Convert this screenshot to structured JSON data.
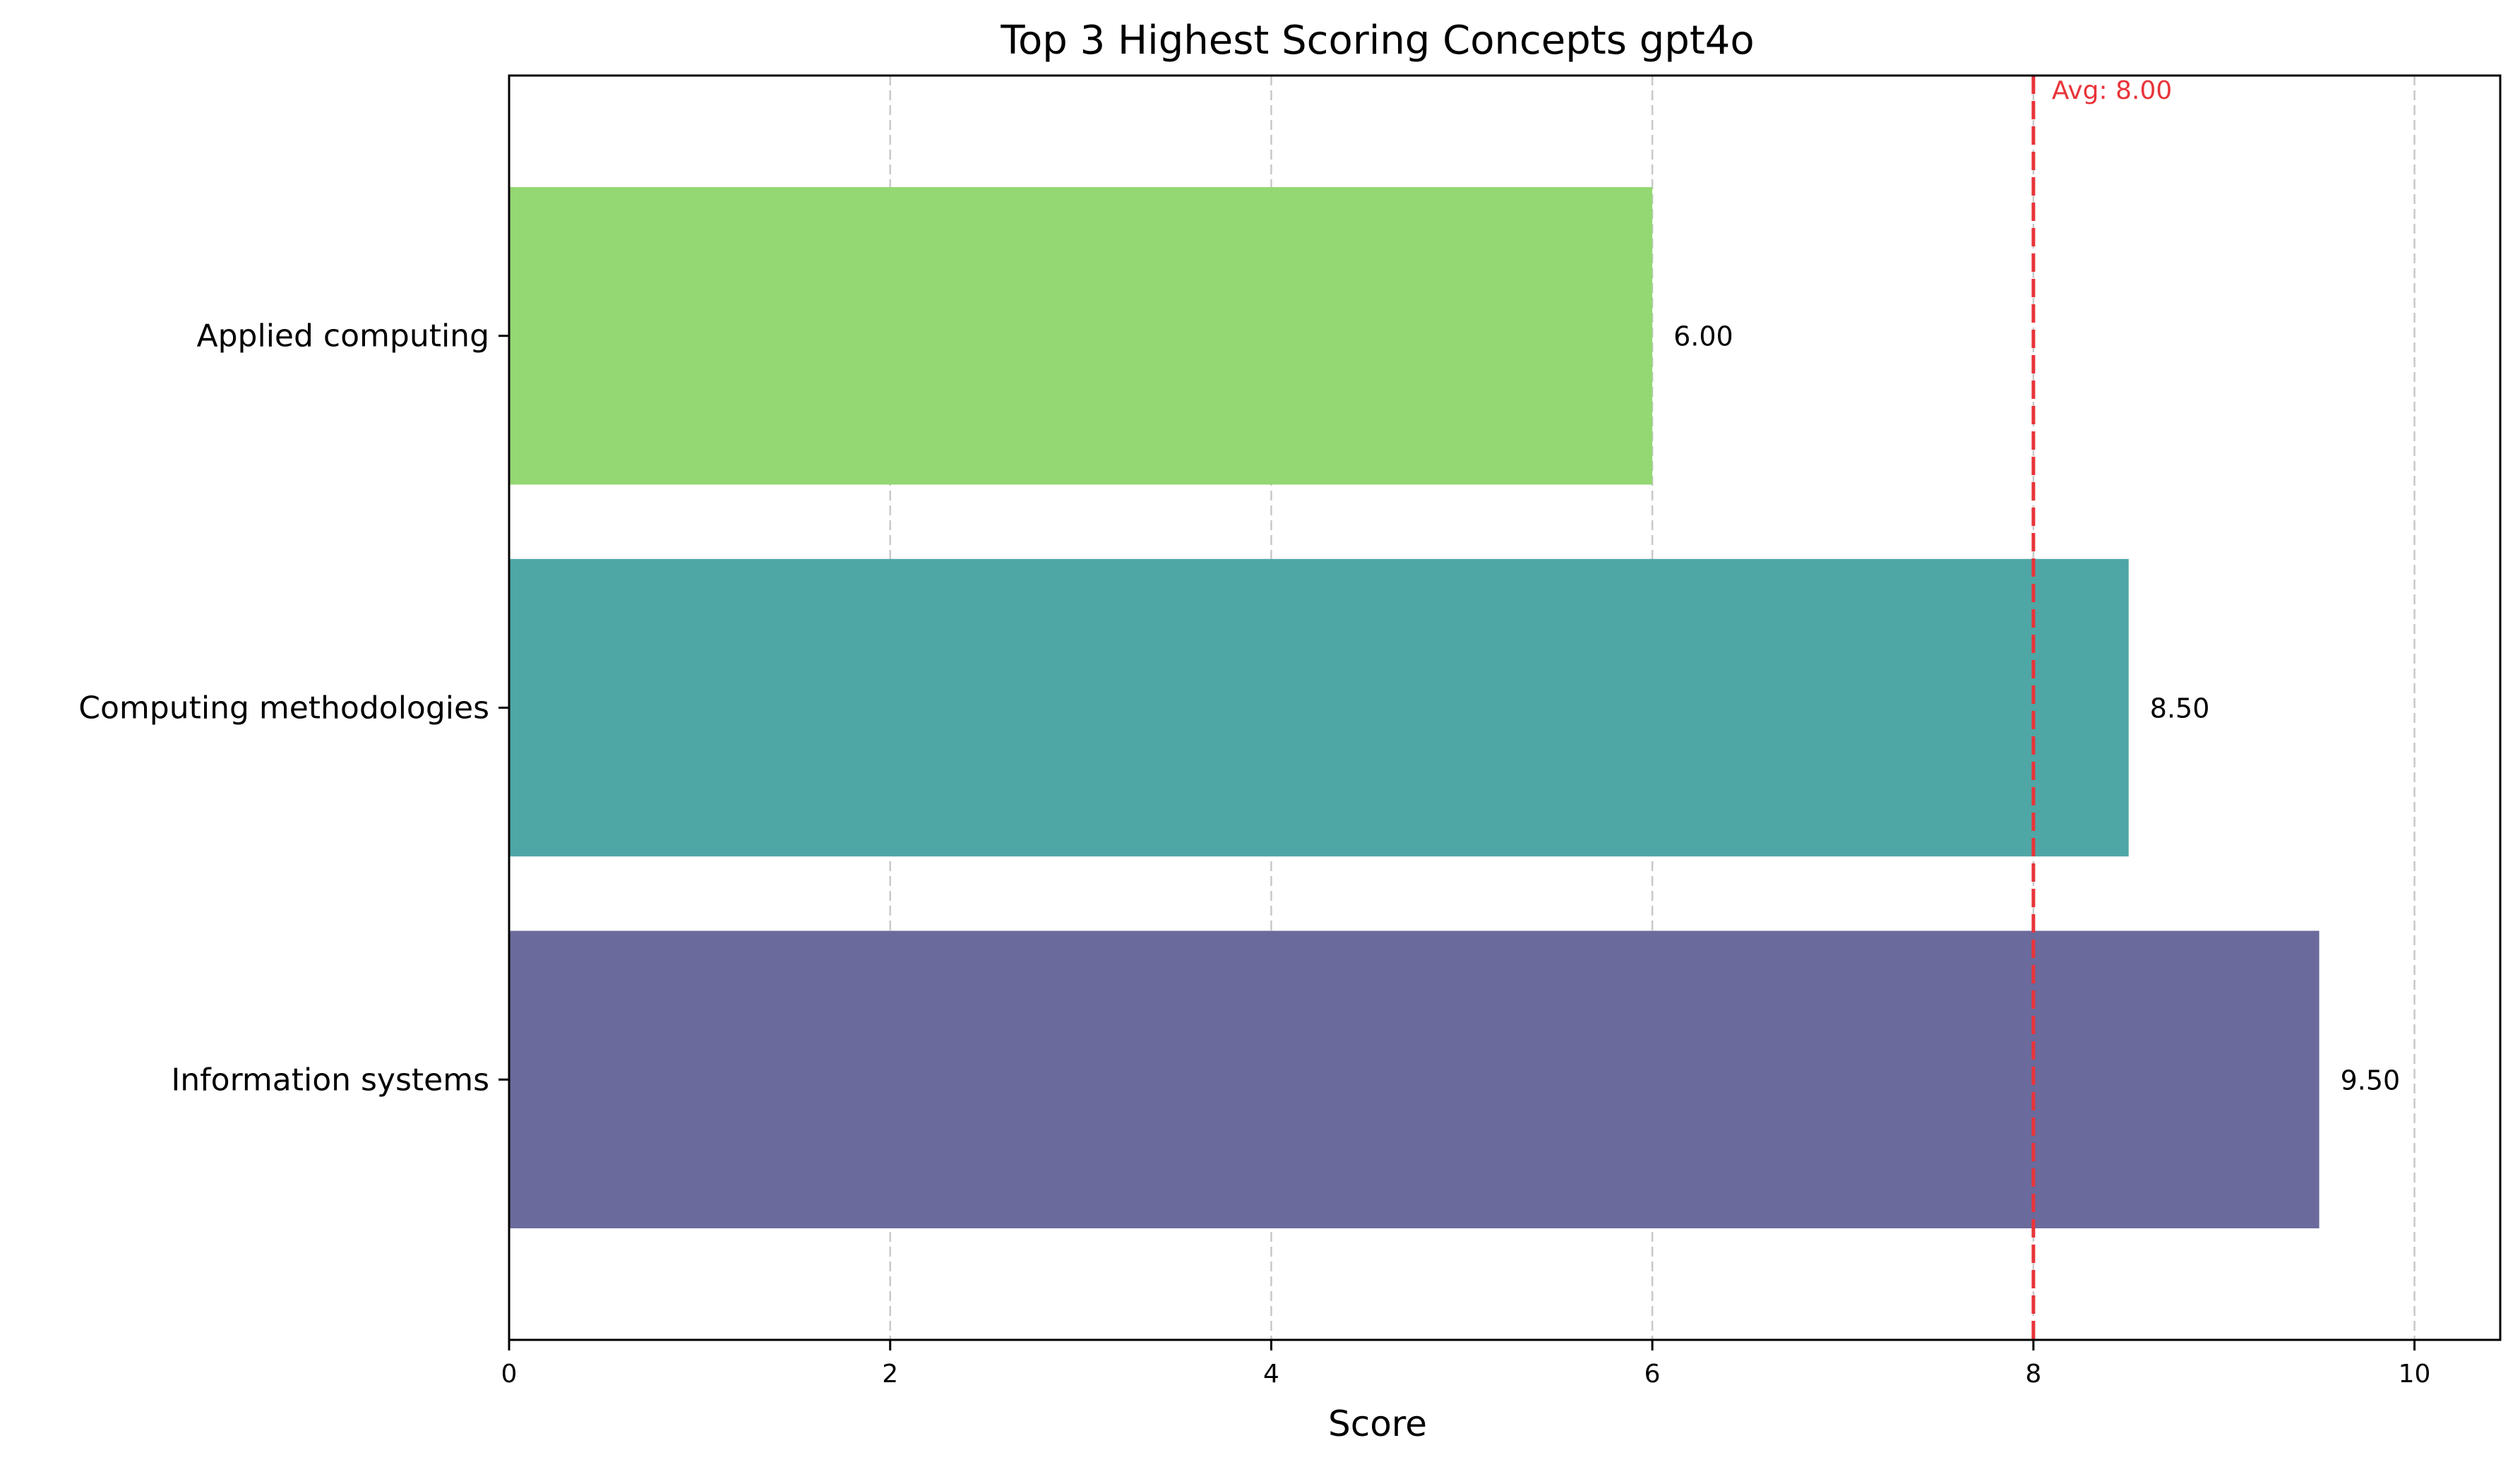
{
  "chart_data": {
    "type": "bar",
    "orientation": "horizontal",
    "title": "Top 3 Highest Scoring Concepts gpt4o",
    "xlabel": "Score",
    "ylabel": "",
    "categories": [
      "Applied computing",
      "Computing methodologies",
      "Information systems"
    ],
    "values": [
      6.0,
      8.5,
      9.5
    ],
    "value_labels": [
      "6.00",
      "8.50",
      "9.50"
    ],
    "colors": [
      "#93d873",
      "#4ea7a5",
      "#6a6a9c"
    ],
    "xlim": [
      0,
      10.45
    ],
    "xticks": [
      0,
      2,
      4,
      6,
      8,
      10
    ],
    "xtick_labels": [
      "0",
      "2",
      "4",
      "6",
      "8",
      "10"
    ],
    "grid": "vertical dashed",
    "average": {
      "value": 8.0,
      "label": "Avg: 8.00",
      "color": "#e8343a"
    }
  }
}
